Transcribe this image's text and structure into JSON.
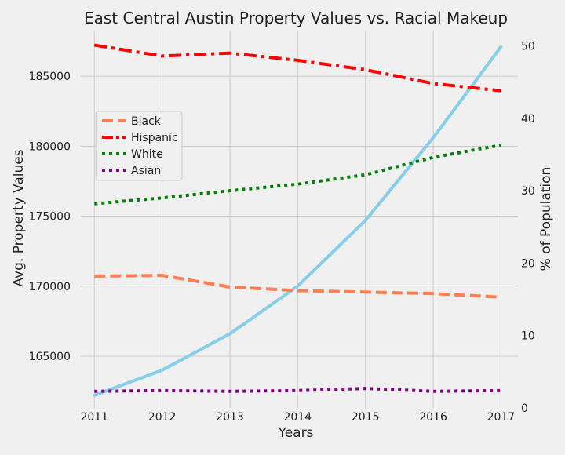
{
  "chart_data": {
    "type": "line",
    "title": "East Central Austin Property Values vs. Racial Makeup",
    "xlabel": "Years",
    "ylabel_left": "Avg. Property Values",
    "ylabel_right": "% of Population",
    "x": [
      2011,
      2012,
      2013,
      2014,
      2015,
      2016,
      2017
    ],
    "x_ticks": [
      "2011",
      "2012",
      "2013",
      "2014",
      "2015",
      "2016",
      "2017"
    ],
    "xlim": [
      2010.8,
      2017.25
    ],
    "ylim_left": [
      161300,
      188200
    ],
    "yticks_left": [
      "165000",
      "170000",
      "175000",
      "180000",
      "185000"
    ],
    "ylim_right": [
      0,
      52
    ],
    "yticks_right": [
      "0",
      "10",
      "20",
      "30",
      "40",
      "50"
    ],
    "grid": true,
    "legend_position": "upper-left",
    "property_series": {
      "axis": "left",
      "color": "#87ceeb",
      "values": [
        162200,
        164000,
        166600,
        170000,
        174700,
        180600,
        187100
      ]
    },
    "series": [
      {
        "name": "Black",
        "axis": "right",
        "color": "#ff7f50",
        "style": "dashed",
        "values": [
          18.2,
          18.3,
          16.7,
          16.2,
          16.0,
          15.8,
          15.3
        ]
      },
      {
        "name": "Hispanic",
        "axis": "right",
        "color": "#ff0000",
        "style": "dashdot",
        "values": [
          50.1,
          48.6,
          49.0,
          48.0,
          46.7,
          44.8,
          43.8
        ]
      },
      {
        "name": "White",
        "axis": "right",
        "color": "#008000",
        "style": "dotted",
        "values": [
          28.2,
          29.0,
          30.0,
          30.9,
          32.2,
          34.6,
          36.3
        ]
      },
      {
        "name": "Asian",
        "axis": "right",
        "color": "#800080",
        "style": "dotted",
        "values": [
          2.3,
          2.4,
          2.3,
          2.4,
          2.7,
          2.3,
          2.4
        ]
      }
    ]
  }
}
